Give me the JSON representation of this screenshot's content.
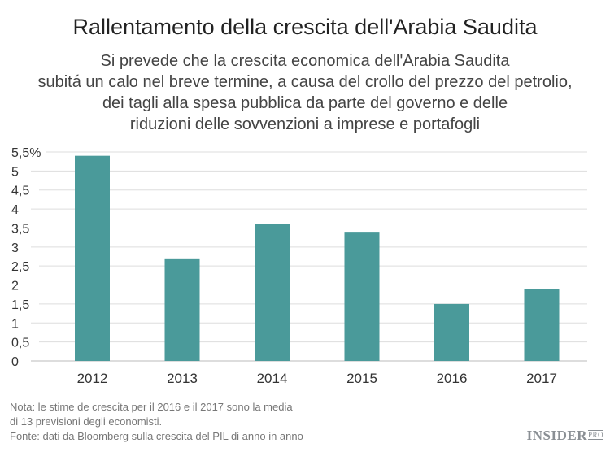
{
  "title": "Rallentamento della crescita dell'Arabia Saudita",
  "subtitle_lines": [
    "Si prevede che la crescita economica dell'Arabia Saudita",
    "subitá un calo nel breve termine, a causa del crollo del prezzo del petrolio,",
    "dei tagli alla spesa pubblica da parte del governo e delle",
    "riduzioni delle sovvenzioni a imprese e portafogli"
  ],
  "notes": [
    "Nota: le stime de crescita per il 2016 e il 2017 sono la media",
    "di 13 previsioni degli economisti.",
    "Fonte: dati da Bloomberg sulla crescita del PIL di anno in anno"
  ],
  "logo": {
    "main": "INSIDER",
    "sup": "PRO"
  },
  "chart_data": {
    "type": "bar",
    "categories": [
      "2012",
      "2013",
      "2014",
      "2015",
      "2016",
      "2017"
    ],
    "values": [
      5.4,
      2.7,
      3.6,
      3.4,
      1.5,
      1.9
    ],
    "ylim": [
      0,
      5.5
    ],
    "yticks": [
      0,
      0.5,
      1,
      1.5,
      2,
      2.5,
      3,
      3.5,
      4,
      4.5,
      5,
      5.5
    ],
    "ytick_labels": [
      "0",
      "0,5",
      "1",
      "1,5",
      "2",
      "2,5",
      "3",
      "3,5",
      "4",
      "4,5",
      "5",
      "5,5%"
    ],
    "grid": true,
    "bar_color": "#4a9a9a",
    "grid_color": "#dddddd"
  }
}
